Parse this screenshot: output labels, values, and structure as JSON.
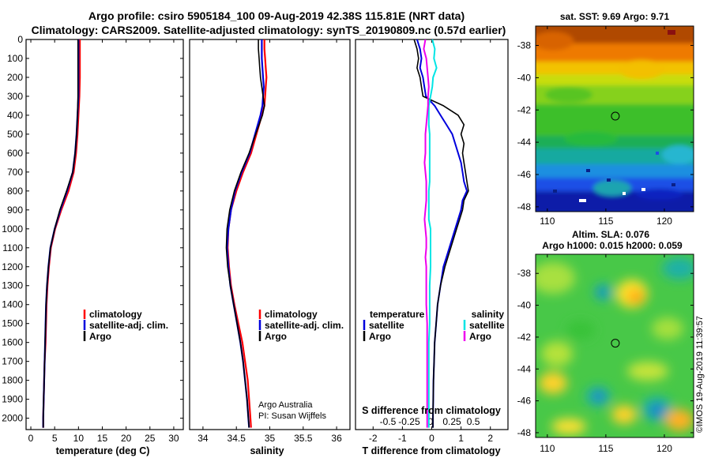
{
  "figure": {
    "title_line1": "Argo profile: csiro 5905184_100 09-Aug-2019 42.38S 115.81E (NRT data)",
    "title_line2": "Climatology: CARS2009. Satellite-adjusted climatology: synTS_20190809.nc (0.57d earlier)",
    "credit_line1": "Argo Australia",
    "credit_line2": "PI: Susan Wijffels",
    "imos_stamp": "©IMOS 19-Aug-2019 11:39:57"
  },
  "colors": {
    "climatology": "#ff0000",
    "satellite": "#0000dd",
    "argo": "#000000",
    "sat_salinity": "#00e5e5",
    "argo_salinity": "#ee00ee"
  },
  "chart_data": [
    {
      "id": "temperature",
      "type": "line",
      "xlabel": "temperature (deg C)",
      "ylabel": "",
      "xlim": [
        -1,
        32
      ],
      "ylim": [
        2060,
        0
      ],
      "xticks": [
        0,
        5,
        10,
        15,
        20,
        25,
        30
      ],
      "yticks": [
        0,
        100,
        200,
        300,
        400,
        500,
        600,
        700,
        800,
        900,
        1000,
        1100,
        1200,
        1300,
        1400,
        1500,
        1600,
        1700,
        1800,
        1900,
        2000
      ],
      "depth": [
        0,
        50,
        100,
        200,
        300,
        400,
        500,
        600,
        700,
        800,
        900,
        1000,
        1100,
        1200,
        1300,
        1400,
        1500,
        1600,
        1700,
        1800,
        1900,
        2000,
        2050
      ],
      "legend": [
        "climatology",
        "satellite-adj. clim.",
        "Argo"
      ],
      "series": [
        {
          "name": "climatology",
          "values": [
            10.3,
            10.3,
            10.3,
            10.3,
            10.2,
            10.0,
            9.8,
            9.5,
            9.0,
            7.9,
            6.4,
            5.1,
            4.2,
            3.8,
            3.5,
            3.3,
            3.2,
            3.1,
            2.9,
            2.8,
            2.7,
            2.6,
            2.6
          ]
        },
        {
          "name": "satellite",
          "values": [
            10.0,
            10.0,
            10.0,
            10.0,
            10.0,
            9.8,
            9.6,
            9.3,
            8.8,
            7.6,
            6.2,
            5.0,
            4.1,
            3.7,
            3.4,
            3.2,
            3.1,
            3.0,
            2.9,
            2.8,
            2.7,
            2.6,
            2.6
          ]
        },
        {
          "name": "Argo",
          "values": [
            9.9,
            9.9,
            9.9,
            9.9,
            9.9,
            9.8,
            9.6,
            9.3,
            8.8,
            7.5,
            6.1,
            5.0,
            4.1,
            3.7,
            3.4,
            3.2,
            3.1,
            3.0,
            2.9,
            2.8,
            2.7,
            2.6,
            2.6
          ]
        }
      ]
    },
    {
      "id": "salinity",
      "type": "line",
      "xlabel": "salinity",
      "ylabel": "",
      "xlim": [
        33.8,
        36.2
      ],
      "ylim": [
        2060,
        0
      ],
      "xticks": [
        34,
        34.5,
        35,
        35.5,
        36
      ],
      "xticklabels": [
        "34",
        "34.5",
        "35",
        "35.5",
        "36"
      ],
      "depth": [
        0,
        50,
        100,
        150,
        200,
        250,
        300,
        350,
        400,
        500,
        600,
        700,
        800,
        900,
        1000,
        1100,
        1200,
        1300,
        1400,
        1500,
        1600,
        1700,
        1800,
        1900,
        2000,
        2050
      ],
      "legend": [
        "climatology",
        "satellite-adj. clim.",
        "Argo"
      ],
      "series": [
        {
          "name": "climatology",
          "values": [
            34.92,
            34.92,
            34.93,
            34.94,
            34.95,
            34.94,
            34.93,
            34.92,
            34.88,
            34.8,
            34.72,
            34.6,
            34.5,
            34.42,
            34.38,
            34.37,
            34.39,
            34.42,
            34.47,
            34.53,
            34.59,
            34.63,
            34.67,
            34.69,
            34.71,
            34.72
          ]
        },
        {
          "name": "satellite",
          "values": [
            34.88,
            34.88,
            34.88,
            34.89,
            34.9,
            34.91,
            34.9,
            34.89,
            34.86,
            34.78,
            34.7,
            34.58,
            34.48,
            34.42,
            34.38,
            34.36,
            34.38,
            34.41,
            34.46,
            34.51,
            34.56,
            34.6,
            34.63,
            34.66,
            34.68,
            34.69
          ]
        },
        {
          "name": "Argo",
          "values": [
            34.83,
            34.83,
            34.84,
            34.85,
            34.86,
            34.88,
            34.9,
            34.92,
            34.89,
            34.79,
            34.69,
            34.57,
            34.47,
            34.4,
            34.36,
            34.35,
            34.37,
            34.41,
            34.46,
            34.51,
            34.56,
            34.6,
            34.63,
            34.66,
            34.68,
            34.69
          ]
        }
      ]
    },
    {
      "id": "difference",
      "type": "line",
      "xlabel": "T difference from climatology",
      "xlabel_top": "S difference from climatology",
      "ylabel": "",
      "xlim": [
        -2.6,
        2.6
      ],
      "ylim": [
        2060,
        0
      ],
      "xticks": [
        -2,
        -1,
        0,
        1,
        2
      ],
      "xticklabels": [
        "-2",
        "-1",
        "0",
        "1",
        "2"
      ],
      "sticks": [
        -0.5,
        -0.25,
        0,
        0.25,
        0.5
      ],
      "sticklabels": [
        "-0.5",
        "-0.25",
        "0",
        "0.25",
        "0.5"
      ],
      "depth": [
        0,
        50,
        100,
        150,
        200,
        250,
        300,
        350,
        400,
        450,
        500,
        550,
        600,
        650,
        700,
        750,
        800,
        850,
        900,
        950,
        1000,
        1050,
        1100,
        1150,
        1200,
        1300,
        1400,
        1500,
        1600,
        1700,
        1800,
        1900,
        2000,
        2050
      ],
      "legend_left_title": "temperature",
      "legend_right_title": "salinity",
      "legend_left": [
        "satellite",
        "Argo"
      ],
      "legend_right": [
        "satellite",
        "Argo"
      ],
      "series": [
        {
          "name": "T satellite",
          "values": [
            -0.5,
            -0.4,
            -0.35,
            -0.4,
            -0.3,
            -0.25,
            -0.2,
            0.1,
            0.3,
            0.5,
            0.7,
            0.8,
            0.9,
            1.0,
            1.05,
            1.1,
            1.2,
            1.05,
            1.0,
            0.9,
            0.8,
            0.7,
            0.6,
            0.5,
            0.4,
            0.3,
            0.2,
            0.15,
            0.1,
            0.08,
            0.06,
            0.05,
            0.04,
            0.04
          ]
        },
        {
          "name": "T Argo",
          "values": [
            -0.6,
            -0.5,
            -0.45,
            -0.5,
            -0.4,
            -0.35,
            -0.3,
            0.4,
            0.9,
            1.1,
            1.0,
            1.1,
            1.05,
            1.1,
            1.15,
            1.2,
            1.25,
            1.1,
            1.05,
            0.95,
            0.85,
            0.75,
            0.65,
            0.55,
            0.45,
            0.3,
            0.2,
            0.15,
            0.1,
            0.08,
            0.06,
            0.05,
            0.04,
            0.04
          ]
        },
        {
          "name": "S satellite",
          "values": [
            0.02,
            0.05,
            0.04,
            0.07,
            0.03,
            0.02,
            0.0,
            -0.02,
            -0.02,
            -0.02,
            -0.01,
            -0.01,
            -0.01,
            -0.01,
            -0.01,
            -0.01,
            -0.02,
            -0.02,
            -0.02,
            -0.02,
            0.0,
            0.0,
            0.0,
            0.0,
            0.0,
            -0.01,
            -0.01,
            -0.01,
            -0.02,
            -0.02,
            -0.02,
            -0.02,
            -0.02,
            -0.02
          ]
        },
        {
          "name": "S Argo",
          "values": [
            -0.06,
            -0.08,
            -0.05,
            -0.04,
            -0.03,
            -0.02,
            -0.03,
            -0.03,
            -0.04,
            -0.05,
            -0.06,
            -0.06,
            -0.06,
            -0.07,
            -0.06,
            -0.05,
            -0.05,
            -0.05,
            -0.06,
            -0.07,
            -0.06,
            -0.05,
            -0.05,
            -0.06,
            -0.05,
            -0.05,
            -0.05,
            -0.04,
            -0.04,
            -0.04,
            -0.04,
            -0.04,
            -0.04,
            -0.04
          ]
        }
      ]
    },
    {
      "id": "sst_map",
      "type": "heatmap",
      "title": "sat. SST: 9.69 Argo: 9.71",
      "xticks": [
        110,
        115,
        120
      ],
      "yticks": [
        -38,
        -40,
        -42,
        -44,
        -46,
        -48
      ],
      "xlim": [
        109,
        122.5
      ],
      "ylim": [
        -48.3,
        -36.8
      ],
      "marker": {
        "lon": 115.81,
        "lat": -42.38
      }
    },
    {
      "id": "sla_map",
      "type": "heatmap",
      "title": "Altim. SLA: 0.076",
      "subtitle": "Argo h1000: 0.015 h2000: 0.059",
      "xticks": [
        110,
        115,
        120
      ],
      "yticks": [
        -38,
        -40,
        -42,
        -44,
        -46,
        -48
      ],
      "xlim": [
        109,
        122.5
      ],
      "ylim": [
        -48.3,
        -36.8
      ],
      "marker": {
        "lon": 115.81,
        "lat": -42.38
      }
    }
  ]
}
